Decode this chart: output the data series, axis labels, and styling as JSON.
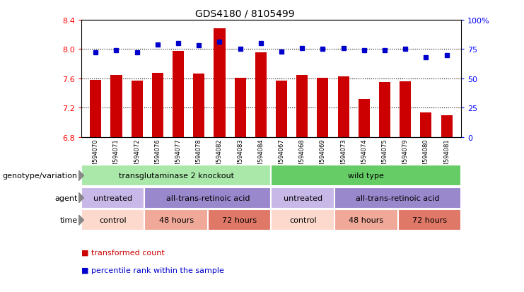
{
  "title": "GDS4180 / 8105499",
  "samples": [
    "GSM594070",
    "GSM594071",
    "GSM594072",
    "GSM594076",
    "GSM594077",
    "GSM594078",
    "GSM594082",
    "GSM594083",
    "GSM594084",
    "GSM594067",
    "GSM594068",
    "GSM594069",
    "GSM594073",
    "GSM594074",
    "GSM594075",
    "GSM594079",
    "GSM594080",
    "GSM594081"
  ],
  "bar_values": [
    7.58,
    7.65,
    7.57,
    7.68,
    7.97,
    7.67,
    8.28,
    7.61,
    7.96,
    7.57,
    7.65,
    7.61,
    7.63,
    7.32,
    7.55,
    7.56,
    7.13,
    7.1
  ],
  "dot_values": [
    72,
    74,
    72,
    79,
    80,
    78,
    81,
    75,
    80,
    73,
    76,
    75,
    76,
    74,
    74,
    75,
    68,
    70
  ],
  "bar_color": "#cc0000",
  "dot_color": "#0000cc",
  "ylim_left": [
    6.8,
    8.4
  ],
  "ylim_right": [
    0,
    100
  ],
  "yticks_left": [
    6.8,
    7.2,
    7.6,
    8.0,
    8.4
  ],
  "yticks_right": [
    0,
    25,
    50,
    75,
    100
  ],
  "ytick_labels_left": [
    "6.8",
    "7.2",
    "7.6",
    "8.0",
    "8.4"
  ],
  "ytick_labels_right": [
    "0",
    "25",
    "50",
    "75",
    "100%"
  ],
  "grid_lines": [
    7.2,
    7.6,
    8.0
  ],
  "genotype_groups": [
    {
      "label": "transglutaminase 2 knockout",
      "start": 0,
      "end": 9,
      "color": "#aae8aa"
    },
    {
      "label": "wild type",
      "start": 9,
      "end": 18,
      "color": "#66cc66"
    }
  ],
  "agent_groups": [
    {
      "label": "untreated",
      "start": 0,
      "end": 3,
      "color": "#c8b8e8"
    },
    {
      "label": "all-trans-retinoic acid",
      "start": 3,
      "end": 9,
      "color": "#9988cc"
    },
    {
      "label": "untreated",
      "start": 9,
      "end": 12,
      "color": "#c8b8e8"
    },
    {
      "label": "all-trans-retinoic acid",
      "start": 12,
      "end": 18,
      "color": "#9988cc"
    }
  ],
  "time_groups": [
    {
      "label": "control",
      "start": 0,
      "end": 3,
      "color": "#fdd8cc"
    },
    {
      "label": "48 hours",
      "start": 3,
      "end": 6,
      "color": "#f0a898"
    },
    {
      "label": "72 hours",
      "start": 6,
      "end": 9,
      "color": "#e07868"
    },
    {
      "label": "control",
      "start": 9,
      "end": 12,
      "color": "#fdd8cc"
    },
    {
      "label": "48 hours",
      "start": 12,
      "end": 15,
      "color": "#f0a898"
    },
    {
      "label": "72 hours",
      "start": 15,
      "end": 18,
      "color": "#e07868"
    }
  ],
  "row_labels": [
    "genotype/variation",
    "agent",
    "time"
  ],
  "legend_bar": "transformed count",
  "legend_dot": "percentile rank within the sample",
  "xtick_bg": "#d8d8d8"
}
